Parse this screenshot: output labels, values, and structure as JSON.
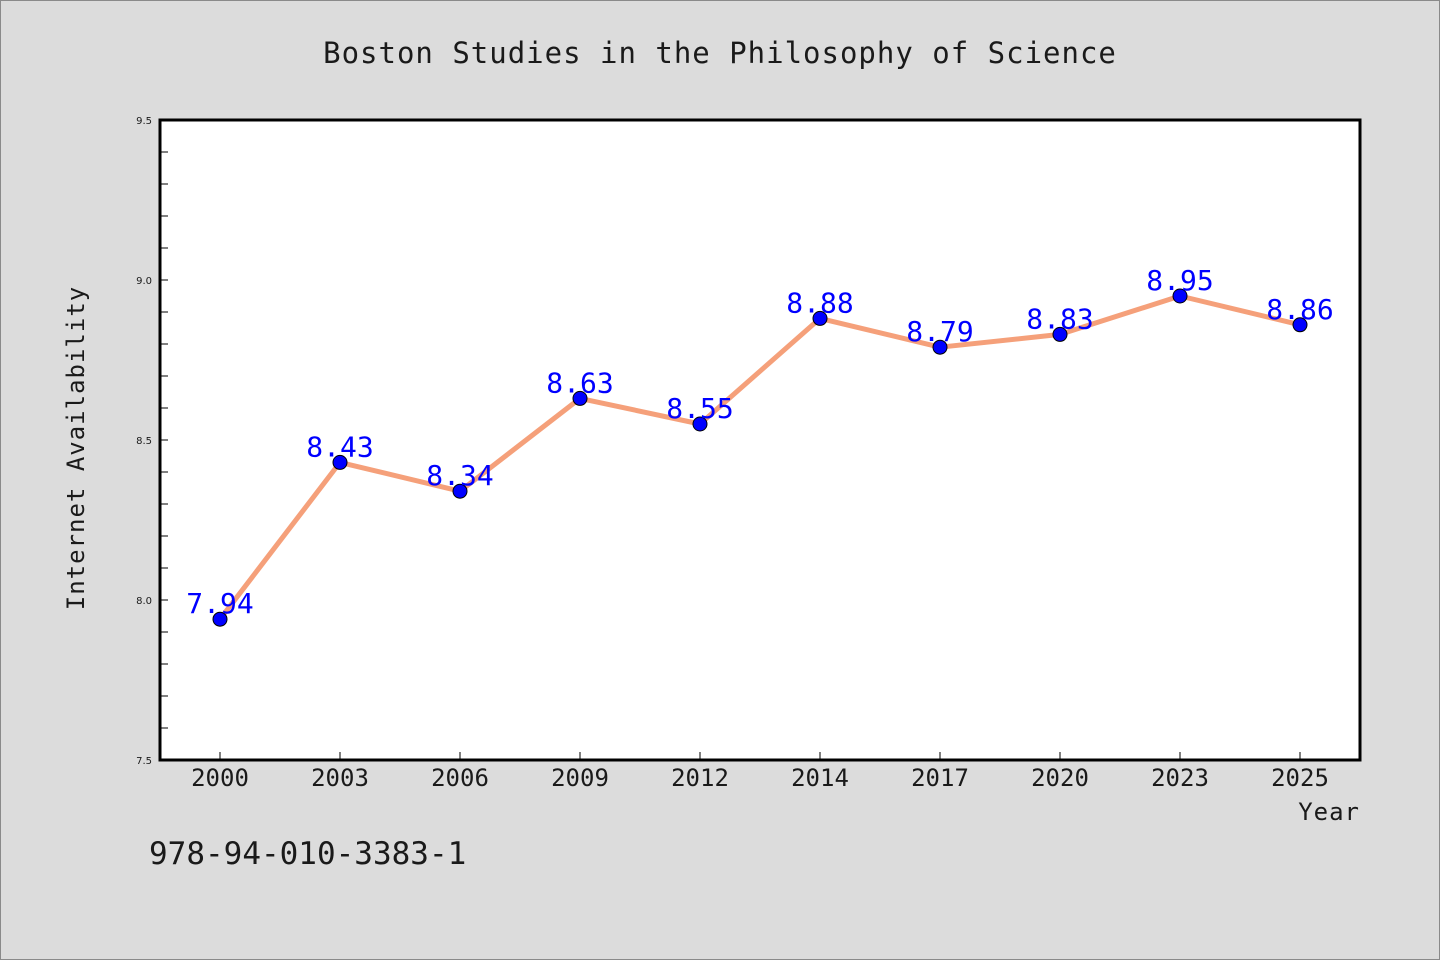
{
  "chart_data": {
    "type": "line",
    "title": "Boston Studies in the Philosophy of Science",
    "xlabel": "Year",
    "ylabel": "Internet Availability",
    "categories": [
      "2000",
      "2003",
      "2006",
      "2009",
      "2012",
      "2014",
      "2017",
      "2020",
      "2023",
      "2025"
    ],
    "series": [
      {
        "values": [
          7.94,
          8.43,
          8.34,
          8.63,
          8.55,
          8.88,
          8.79,
          8.83,
          8.95,
          8.86
        ],
        "line_color": "#f5a07a",
        "marker_color": "#0000ff"
      }
    ],
    "data_labels": [
      "7.94",
      "8.43",
      "8.34",
      "8.63",
      "8.55",
      "8.88",
      "8.79",
      "8.83",
      "8.95",
      "8.86"
    ],
    "ylim": [
      7.5,
      9.5
    ],
    "yticks": [
      "7.5",
      "8.0",
      "8.5",
      "9.0",
      "9.5"
    ],
    "grid": false,
    "legend": "none"
  },
  "footer": {
    "isbn": "978-94-010-3383-1"
  },
  "colors": {
    "background": "#dcdcdc",
    "plot_background": "#ffffff",
    "line": "#f5a07a",
    "marker": "#0000ff",
    "data_label": "#0000ff"
  }
}
